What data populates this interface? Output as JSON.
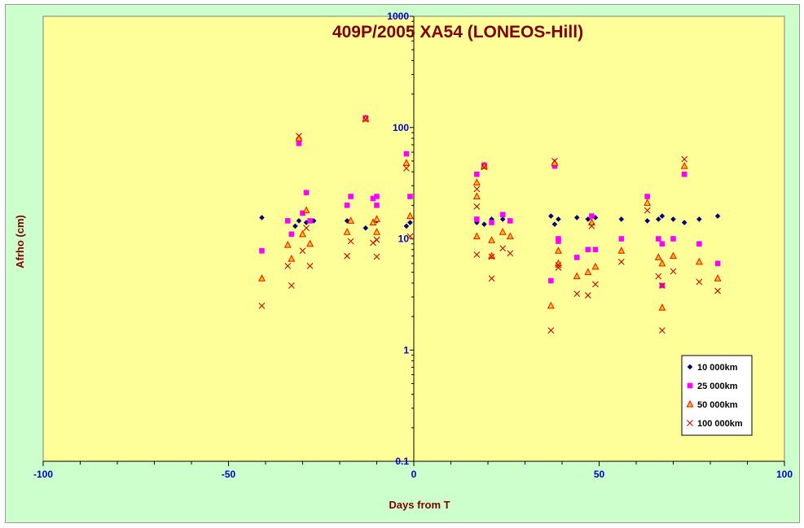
{
  "chart_data": {
    "type": "scatter",
    "title": "409P/2005 XA54 (LONEOS-Hill)",
    "xlabel": "Days from  T",
    "ylabel": "Afrho (cm)",
    "xlim": [
      -100,
      100
    ],
    "ylim": [
      0.1,
      1000
    ],
    "yscale": "log",
    "x_ticks": [
      -100,
      -50,
      0,
      50,
      100
    ],
    "y_ticks": [
      0.1,
      1,
      10,
      100,
      1000
    ],
    "x_tick_labels": [
      "-100",
      "-50",
      "0",
      "50",
      "100"
    ],
    "y_tick_labels": [
      "0.1",
      "1",
      "10",
      "100",
      "1000"
    ],
    "grid": false,
    "legend_position": "bottom-right",
    "colors": {
      "plot_background": "#ffff99",
      "chart_background": "#ccffcc",
      "title": "#800000",
      "axis_title": "#800000",
      "tick_label": "#0000cc"
    },
    "series": [
      {
        "name": "10 000km",
        "marker": "diamond",
        "color": "#000080",
        "points": [
          [
            -41,
            15.5
          ],
          [
            -34,
            14.5
          ],
          [
            -32,
            13
          ],
          [
            -31,
            14.5
          ],
          [
            -29,
            14
          ],
          [
            -27,
            14.5
          ],
          [
            -18,
            14.5
          ],
          [
            -13,
            12.5
          ],
          [
            -10,
            14.5
          ],
          [
            -2,
            13
          ],
          [
            -1,
            14
          ],
          [
            17,
            14
          ],
          [
            19,
            13.5
          ],
          [
            21,
            15
          ],
          [
            24,
            15
          ],
          [
            26,
            14.5
          ],
          [
            37,
            16
          ],
          [
            38,
            13.5
          ],
          [
            39,
            15
          ],
          [
            44,
            15.5
          ],
          [
            47,
            15
          ],
          [
            49,
            15.5
          ],
          [
            56,
            15
          ],
          [
            63,
            14.5
          ],
          [
            66,
            15
          ],
          [
            67,
            16
          ],
          [
            70,
            15
          ],
          [
            73,
            14
          ],
          [
            77,
            15
          ],
          [
            82,
            16
          ]
        ]
      },
      {
        "name": "25 000km",
        "marker": "square",
        "color": "#ff00ff",
        "points": [
          [
            -41,
            7.8
          ],
          [
            -34,
            14.5
          ],
          [
            -33,
            11
          ],
          [
            -31,
            72
          ],
          [
            -30,
            17
          ],
          [
            -29,
            26
          ],
          [
            -28,
            14.5
          ],
          [
            -18,
            20
          ],
          [
            -17,
            24
          ],
          [
            -13,
            122
          ],
          [
            -11,
            23
          ],
          [
            -10,
            24
          ],
          [
            -10,
            20
          ],
          [
            -2,
            58
          ],
          [
            -1,
            24
          ],
          [
            17,
            38
          ],
          [
            17,
            15
          ],
          [
            19,
            46
          ],
          [
            21,
            14
          ],
          [
            24,
            16.5
          ],
          [
            26,
            14.5
          ],
          [
            37,
            4.2
          ],
          [
            38,
            45
          ],
          [
            39,
            10
          ],
          [
            39,
            9.5
          ],
          [
            44,
            6.8
          ],
          [
            47,
            8
          ],
          [
            48,
            16
          ],
          [
            49,
            8
          ],
          [
            56,
            10
          ],
          [
            63,
            24
          ],
          [
            66,
            10
          ],
          [
            67,
            9
          ],
          [
            67,
            3.8
          ],
          [
            70,
            10
          ],
          [
            73,
            38
          ],
          [
            77,
            9
          ],
          [
            82,
            6
          ]
        ]
      },
      {
        "name": "50 000km",
        "marker": "triangle",
        "color": "#ff0000",
        "fill": "#ffcc00",
        "points": [
          [
            -41,
            4.4
          ],
          [
            -34,
            8.8
          ],
          [
            -33,
            6.6
          ],
          [
            -31,
            80
          ],
          [
            -30,
            11
          ],
          [
            -29,
            18
          ],
          [
            -28,
            9
          ],
          [
            -18,
            11.5
          ],
          [
            -17,
            14.5
          ],
          [
            -13,
            120
          ],
          [
            -11,
            14
          ],
          [
            -10,
            15
          ],
          [
            -10,
            11.5
          ],
          [
            -2,
            48
          ],
          [
            -1,
            16
          ],
          [
            17,
            32
          ],
          [
            17,
            24
          ],
          [
            17,
            10.5
          ],
          [
            19,
            45
          ],
          [
            21,
            9.7
          ],
          [
            21,
            7
          ],
          [
            24,
            11.5
          ],
          [
            26,
            10.5
          ],
          [
            37,
            2.5
          ],
          [
            38,
            48
          ],
          [
            39,
            7.8
          ],
          [
            39,
            6
          ],
          [
            44,
            4.6
          ],
          [
            47,
            5
          ],
          [
            48,
            14
          ],
          [
            49,
            5.6
          ],
          [
            56,
            7.8
          ],
          [
            63,
            21
          ],
          [
            66,
            6.8
          ],
          [
            67,
            6
          ],
          [
            67,
            2.4
          ],
          [
            70,
            7
          ],
          [
            73,
            45
          ],
          [
            77,
            6.2
          ],
          [
            82,
            4.4
          ]
        ]
      },
      {
        "name": "100 000km",
        "marker": "x",
        "color": "#cc0000",
        "points": [
          [
            -41,
            2.5
          ],
          [
            -34,
            5.7
          ],
          [
            -33,
            3.8
          ],
          [
            -31,
            84
          ],
          [
            -30,
            7.8
          ],
          [
            -29,
            12.5
          ],
          [
            -28,
            5.7
          ],
          [
            -18,
            7
          ],
          [
            -17,
            9.5
          ],
          [
            -13,
            118
          ],
          [
            -11,
            9.2
          ],
          [
            -10,
            9.8
          ],
          [
            -10,
            6.9
          ],
          [
            -2,
            43
          ],
          [
            -1,
            10.5
          ],
          [
            17,
            28
          ],
          [
            17,
            19.5
          ],
          [
            17,
            7.2
          ],
          [
            19,
            44
          ],
          [
            21,
            6.9
          ],
          [
            21,
            4.4
          ],
          [
            24,
            8.2
          ],
          [
            26,
            7.4
          ],
          [
            37,
            1.5
          ],
          [
            38,
            50
          ],
          [
            39,
            5.8
          ],
          [
            39,
            5.5
          ],
          [
            44,
            3.2
          ],
          [
            47,
            3.1
          ],
          [
            48,
            13
          ],
          [
            49,
            3.9
          ],
          [
            56,
            6.2
          ],
          [
            63,
            18
          ],
          [
            66,
            4.6
          ],
          [
            67,
            3.8
          ],
          [
            67,
            1.5
          ],
          [
            70,
            5.1
          ],
          [
            73,
            52
          ],
          [
            77,
            4.1
          ],
          [
            82,
            3.4
          ]
        ]
      }
    ]
  }
}
